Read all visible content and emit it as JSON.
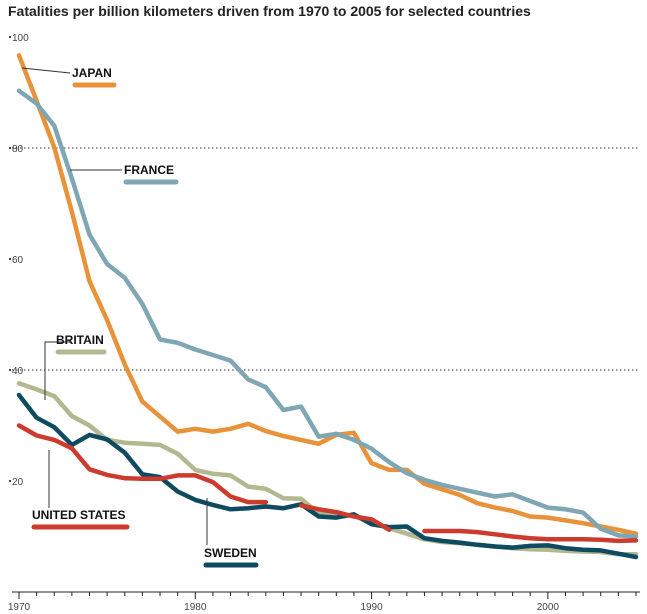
{
  "chart_data": {
    "type": "line",
    "title": "Fatalities per billion kilometers driven from 1970 to 2005 for selected countries",
    "xlabel": "",
    "ylabel": "",
    "xlim": [
      1970,
      2005
    ],
    "ylim": [
      0,
      100
    ],
    "x_ticks": [
      {
        "value": 1970,
        "label": "1970"
      },
      {
        "value": 1980,
        "label": "1980"
      },
      {
        "value": 1990,
        "label": "1990"
      },
      {
        "value": 2000,
        "label": "2000"
      }
    ],
    "y_ticks": [
      {
        "value": 100,
        "label": "100"
      },
      {
        "value": 80,
        "label": "80"
      },
      {
        "value": 60,
        "label": "60"
      },
      {
        "value": 40,
        "label": "40"
      },
      {
        "value": 20,
        "label": "20"
      }
    ],
    "gridlines": [
      80,
      40
    ],
    "series": [
      {
        "name": "JAPAN",
        "color": "#e8923a",
        "segments": [
          [
            [
              1970,
              96.7
            ],
            [
              1971,
              88.5
            ],
            [
              1972,
              80.1
            ],
            [
              1973,
              68.5
            ],
            [
              1974,
              56.0
            ],
            [
              1975,
              49.0
            ],
            [
              1976,
              41.0
            ],
            [
              1977,
              34.3
            ],
            [
              1978,
              31.6
            ],
            [
              1979,
              28.9
            ],
            [
              1980,
              29.4
            ],
            [
              1981,
              28.9
            ],
            [
              1982,
              29.4
            ],
            [
              1983,
              30.3
            ],
            [
              1984,
              29.0
            ],
            [
              1985,
              28.1
            ],
            [
              1986,
              27.4
            ],
            [
              1987,
              26.7
            ],
            [
              1988,
              28.3
            ],
            [
              1989,
              28.7
            ],
            [
              1990,
              23.2
            ],
            [
              1991,
              22.0
            ],
            [
              1992,
              22.0
            ],
            [
              1993,
              19.5
            ],
            [
              1994,
              18.5
            ],
            [
              1995,
              17.5
            ],
            [
              1996,
              16.0
            ],
            [
              1997,
              15.2
            ],
            [
              1998,
              14.6
            ],
            [
              1999,
              13.6
            ],
            [
              2000,
              13.4
            ],
            [
              2001,
              12.9
            ],
            [
              2002,
              12.4
            ],
            [
              2003,
              11.8
            ],
            [
              2004,
              11.2
            ],
            [
              2005,
              10.5
            ]
          ]
        ]
      },
      {
        "name": "FRANCE",
        "color": "#7fa6b3",
        "segments": [
          [
            [
              1970,
              90.3
            ],
            [
              1971,
              88.0
            ],
            [
              1972,
              84.0
            ],
            [
              1973,
              74.5
            ],
            [
              1974,
              64.4
            ],
            [
              1975,
              59.1
            ],
            [
              1976,
              56.6
            ],
            [
              1977,
              51.9
            ],
            [
              1978,
              45.5
            ],
            [
              1979,
              44.9
            ],
            [
              1980,
              43.7
            ],
            [
              1981,
              42.7
            ],
            [
              1982,
              41.7
            ],
            [
              1983,
              38.3
            ],
            [
              1984,
              36.9
            ],
            [
              1985,
              32.8
            ],
            [
              1986,
              33.4
            ],
            [
              1987,
              28.0
            ],
            [
              1988,
              28.5
            ],
            [
              1989,
              27.4
            ],
            [
              1990,
              25.8
            ],
            [
              1991,
              23.4
            ],
            [
              1992,
              21.4
            ],
            [
              1993,
              20.2
            ],
            [
              1994,
              19.3
            ],
            [
              1995,
              18.6
            ],
            [
              1996,
              17.9
            ],
            [
              1997,
              17.2
            ],
            [
              1998,
              17.6
            ],
            [
              1999,
              16.4
            ],
            [
              2000,
              15.2
            ],
            [
              2001,
              14.9
            ],
            [
              2002,
              14.3
            ],
            [
              2003,
              11.4
            ],
            [
              2004,
              10.2
            ],
            [
              2005,
              10.0
            ]
          ]
        ]
      },
      {
        "name": "BRITAIN",
        "color": "#b3b88e",
        "segments": [
          [
            [
              1970,
              37.6
            ],
            [
              1971,
              36.5
            ],
            [
              1972,
              35.3
            ],
            [
              1973,
              31.7
            ],
            [
              1974,
              30.0
            ],
            [
              1975,
              27.4
            ],
            [
              1976,
              26.9
            ],
            [
              1977,
              26.7
            ],
            [
              1978,
              26.5
            ],
            [
              1979,
              24.9
            ],
            [
              1980,
              22.0
            ],
            [
              1981,
              21.3
            ],
            [
              1982,
              21.0
            ],
            [
              1983,
              19.0
            ],
            [
              1984,
              18.6
            ],
            [
              1985,
              16.9
            ],
            [
              1986,
              16.8
            ],
            [
              1987,
              14.1
            ],
            [
              1988,
              14.0
            ],
            [
              1989,
              13.7
            ],
            [
              1990,
              12.5
            ],
            [
              1991,
              11.5
            ],
            [
              1992,
              10.5
            ],
            [
              1993,
              9.5
            ],
            [
              1994,
              9.0
            ],
            [
              1995,
              8.8
            ],
            [
              1996,
              8.5
            ],
            [
              1997,
              8.2
            ],
            [
              1998,
              7.9
            ],
            [
              1999,
              7.7
            ],
            [
              2000,
              7.6
            ],
            [
              2001,
              7.4
            ],
            [
              2002,
              7.3
            ],
            [
              2003,
              7.2
            ],
            [
              2004,
              6.8
            ],
            [
              2005,
              6.8
            ]
          ]
        ]
      },
      {
        "name": "SWEDEN",
        "color": "#0e4b60",
        "segments": [
          [
            [
              1970,
              35.5
            ],
            [
              1971,
              31.4
            ],
            [
              1972,
              29.7
            ],
            [
              1973,
              26.5
            ],
            [
              1974,
              28.3
            ],
            [
              1975,
              27.5
            ],
            [
              1976,
              25.1
            ],
            [
              1977,
              21.2
            ],
            [
              1978,
              20.7
            ],
            [
              1979,
              18.1
            ],
            [
              1980,
              16.6
            ],
            [
              1981,
              15.7
            ],
            [
              1982,
              14.9
            ],
            [
              1983,
              15.1
            ],
            [
              1984,
              15.4
            ],
            [
              1985,
              15.1
            ],
            [
              1986,
              15.8
            ],
            [
              1987,
              13.6
            ],
            [
              1988,
              13.4
            ],
            [
              1989,
              14.0
            ],
            [
              1990,
              12.2
            ],
            [
              1991,
              11.7
            ],
            [
              1992,
              11.8
            ],
            [
              1993,
              9.7
            ],
            [
              1994,
              9.2
            ],
            [
              1995,
              8.9
            ],
            [
              1996,
              8.5
            ],
            [
              1997,
              8.2
            ],
            [
              1998,
              8.0
            ],
            [
              1999,
              8.3
            ],
            [
              2000,
              8.4
            ],
            [
              2001,
              7.9
            ],
            [
              2002,
              7.6
            ],
            [
              2003,
              7.5
            ],
            [
              2004,
              6.9
            ],
            [
              2005,
              6.3
            ]
          ]
        ]
      },
      {
        "name": "UNITED STATES",
        "color": "#cc3b2e",
        "segments": [
          [
            [
              1970,
              30.0
            ],
            [
              1971,
              28.2
            ],
            [
              1972,
              27.4
            ],
            [
              1973,
              25.9
            ],
            [
              1974,
              22.1
            ],
            [
              1975,
              21.1
            ],
            [
              1976,
              20.5
            ],
            [
              1977,
              20.4
            ],
            [
              1978,
              20.4
            ],
            [
              1979,
              21.0
            ],
            [
              1980,
              21.0
            ],
            [
              1981,
              19.8
            ],
            [
              1982,
              17.2
            ],
            [
              1983,
              16.2
            ],
            [
              1984,
              16.2
            ]
          ],
          [
            [
              1986,
              15.6
            ],
            [
              1987,
              14.9
            ],
            [
              1988,
              14.4
            ],
            [
              1989,
              13.6
            ],
            [
              1990,
              13.1
            ],
            [
              1991,
              11.2
            ]
          ],
          [
            [
              1993,
              11.0
            ],
            [
              1994,
              11.0
            ],
            [
              1995,
              11.0
            ],
            [
              1996,
              10.8
            ],
            [
              1997,
              10.4
            ],
            [
              1998,
              10.0
            ],
            [
              1999,
              9.7
            ],
            [
              2000,
              9.5
            ],
            [
              2001,
              9.5
            ],
            [
              2002,
              9.5
            ],
            [
              2003,
              9.4
            ],
            [
              2004,
              9.2
            ],
            [
              2005,
              9.3
            ]
          ]
        ]
      }
    ]
  }
}
